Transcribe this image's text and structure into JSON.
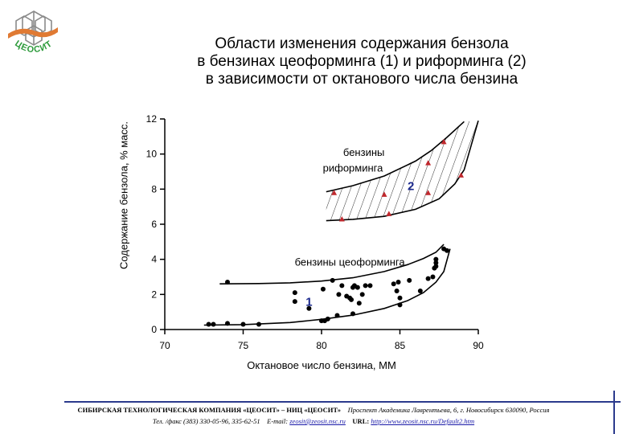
{
  "logo": {
    "text": "ЦЕОСИТ",
    "icon": "zeolite-framework-logo"
  },
  "title_lines": [
    "Области изменения содержания бензола",
    "в бензинах цеоформинга (1) и риформинга (2)",
    "в зависимости от октанового числа  бензина"
  ],
  "chart_data": {
    "type": "scatter",
    "title": "Области изменения содержания бензола в бензинах цеоформинга (1) и риформинга (2) в зависимости от октанового числа  бензина",
    "xlabel": "Октановое число бензина, ММ",
    "ylabel": "Содержание бензола, % масс.",
    "xlim": [
      70,
      90
    ],
    "ylim": [
      0,
      12
    ],
    "xticks": [
      70,
      75,
      80,
      85,
      90
    ],
    "yticks": [
      0,
      2,
      4,
      6,
      8,
      10,
      12
    ],
    "grid": false,
    "legend": "none",
    "annotations": {
      "reforming_text": [
        "бензины",
        "риформинга"
      ],
      "reforming_number": "2",
      "zeoforming_text": "бензины цеоформинга",
      "zeoforming_number": "1"
    },
    "colors": {
      "zeoforming": "#000000",
      "reforming_markers": "#c0282d",
      "region_number": "#1c2a8e",
      "hatch": "#333333",
      "axis": "#000000"
    },
    "series": [
      {
        "id": "zeoforming",
        "marker": "circle",
        "points": [
          [
            72.8,
            0.3
          ],
          [
            73.1,
            0.3
          ],
          [
            74.0,
            0.35
          ],
          [
            75.0,
            0.3
          ],
          [
            76.0,
            0.3
          ],
          [
            80.0,
            0.5
          ],
          [
            80.2,
            0.5
          ],
          [
            80.4,
            0.6
          ],
          [
            81.0,
            0.8
          ],
          [
            82.0,
            0.9
          ],
          [
            74.0,
            2.7
          ],
          [
            78.3,
            2.1
          ],
          [
            78.3,
            1.6
          ],
          [
            79.2,
            1.2
          ],
          [
            80.1,
            2.3
          ],
          [
            80.7,
            2.8
          ],
          [
            81.1,
            2.0
          ],
          [
            81.3,
            2.5
          ],
          [
            81.6,
            1.9
          ],
          [
            81.8,
            1.8
          ],
          [
            81.9,
            1.7
          ],
          [
            82.0,
            2.4
          ],
          [
            82.1,
            2.5
          ],
          [
            82.3,
            2.4
          ],
          [
            82.4,
            1.5
          ],
          [
            82.6,
            2.0
          ],
          [
            82.8,
            2.5
          ],
          [
            83.1,
            2.5
          ],
          [
            84.6,
            2.6
          ],
          [
            84.8,
            2.2
          ],
          [
            84.9,
            2.7
          ],
          [
            85.0,
            1.4
          ],
          [
            85.0,
            1.8
          ],
          [
            85.6,
            2.8
          ],
          [
            86.3,
            2.2
          ],
          [
            86.8,
            2.9
          ],
          [
            87.1,
            3.0
          ],
          [
            87.2,
            3.5
          ],
          [
            87.3,
            3.6
          ],
          [
            87.3,
            3.8
          ],
          [
            87.3,
            4.0
          ],
          [
            87.8,
            4.6
          ],
          [
            88.0,
            4.5
          ]
        ]
      },
      {
        "id": "reforming",
        "marker": "triangle",
        "points": [
          [
            80.8,
            7.8
          ],
          [
            81.3,
            6.3
          ],
          [
            84.0,
            7.7
          ],
          [
            84.3,
            6.6
          ],
          [
            86.8,
            7.8
          ],
          [
            86.8,
            9.5
          ],
          [
            87.8,
            10.7
          ],
          [
            88.9,
            8.8
          ]
        ]
      }
    ],
    "boundary_curves": [
      {
        "id": "zeoforming_upper",
        "points": [
          [
            73.5,
            2.6
          ],
          [
            76,
            2.62
          ],
          [
            78,
            2.66
          ],
          [
            80,
            2.76
          ],
          [
            82,
            2.95
          ],
          [
            84,
            3.3
          ],
          [
            85.5,
            3.7
          ],
          [
            86.5,
            4.05
          ],
          [
            87.3,
            4.4
          ],
          [
            87.8,
            4.85
          ]
        ]
      },
      {
        "id": "zeoforming_lower",
        "points": [
          [
            72.5,
            0.25
          ],
          [
            75,
            0.28
          ],
          [
            78,
            0.4
          ],
          [
            80,
            0.58
          ],
          [
            82,
            0.82
          ],
          [
            84,
            1.2
          ],
          [
            85.5,
            1.65
          ],
          [
            86.5,
            2.1
          ],
          [
            87.3,
            2.7
          ],
          [
            87.8,
            3.3
          ],
          [
            88.2,
            4.6
          ]
        ]
      },
      {
        "id": "reforming_upper",
        "points": [
          [
            80.3,
            7.85
          ],
          [
            82,
            8.2
          ],
          [
            84,
            8.75
          ],
          [
            86,
            9.6
          ],
          [
            87,
            10.2
          ],
          [
            88,
            10.95
          ],
          [
            89.1,
            11.85
          ]
        ]
      },
      {
        "id": "reforming_lower",
        "points": [
          [
            80.3,
            6.2
          ],
          [
            82,
            6.28
          ],
          [
            84,
            6.45
          ],
          [
            86,
            6.85
          ],
          [
            87.5,
            7.45
          ],
          [
            88.5,
            8.3
          ],
          [
            89.1,
            9.1
          ],
          [
            90,
            11.9
          ]
        ]
      }
    ]
  },
  "footer": {
    "line1_org": "СИБИРСКАЯ  ТЕХНОЛОГИЧЕСКАЯ  КОМПАНИЯ  «ЦЕОСИТ» – НИЦ «ЦЕОСИТ»",
    "line1_address": "Проспект Академика Лаврентьева, 6, г. Новосибирск 630090, Россия",
    "line2_phone": "Тел. /факс (383) 330-05-96, 335-62-51",
    "line2_email_label": "E-mail:",
    "line2_email": "zeosit@zeosit.nsc.ru",
    "line2_url_label": "URL:",
    "line2_url": "http://www.zeosit.nsc.ru/Default2.htm"
  }
}
